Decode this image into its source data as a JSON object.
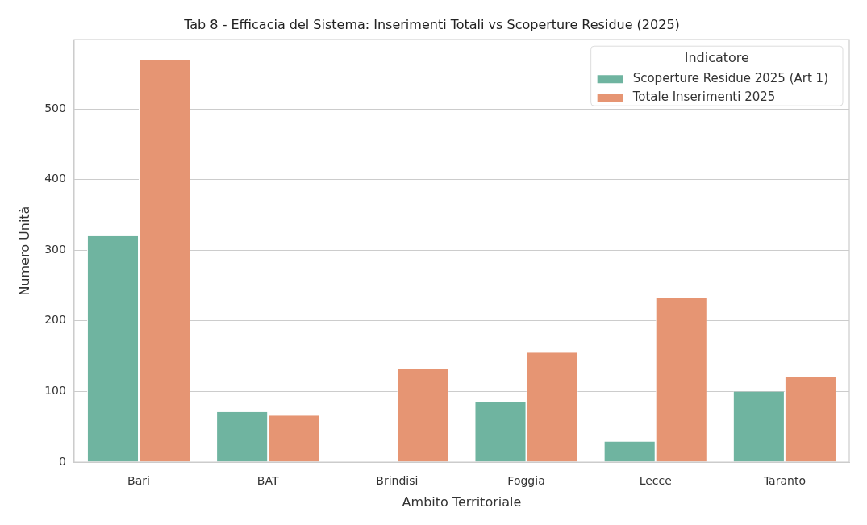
{
  "chart_data": {
    "type": "bar",
    "title": "Tab 8 - Efficacia del Sistema: Inserimenti Totali vs Scoperture Residue (2025)",
    "xlabel": "Ambito Territoriale",
    "ylabel": "Numero Unità",
    "legend_title": "Indicatore",
    "categories": [
      "Bari",
      "BAT",
      "Brindisi",
      "Foggia",
      "Lecce",
      "Taranto"
    ],
    "series": [
      {
        "name": "Scoperture Residue 2025 (Art 1)",
        "color": "#6fb4a0",
        "values": [
          320,
          71,
          0,
          85,
          29,
          100
        ]
      },
      {
        "name": "Totale Inserimenti 2025",
        "color": "#e69573",
        "values": [
          569,
          66,
          132,
          155,
          232,
          120
        ]
      }
    ],
    "ylim": [
      0,
      598
    ],
    "yticks": [
      0,
      100,
      200,
      300,
      400,
      500
    ],
    "grid": "y",
    "legend": "top right"
  }
}
